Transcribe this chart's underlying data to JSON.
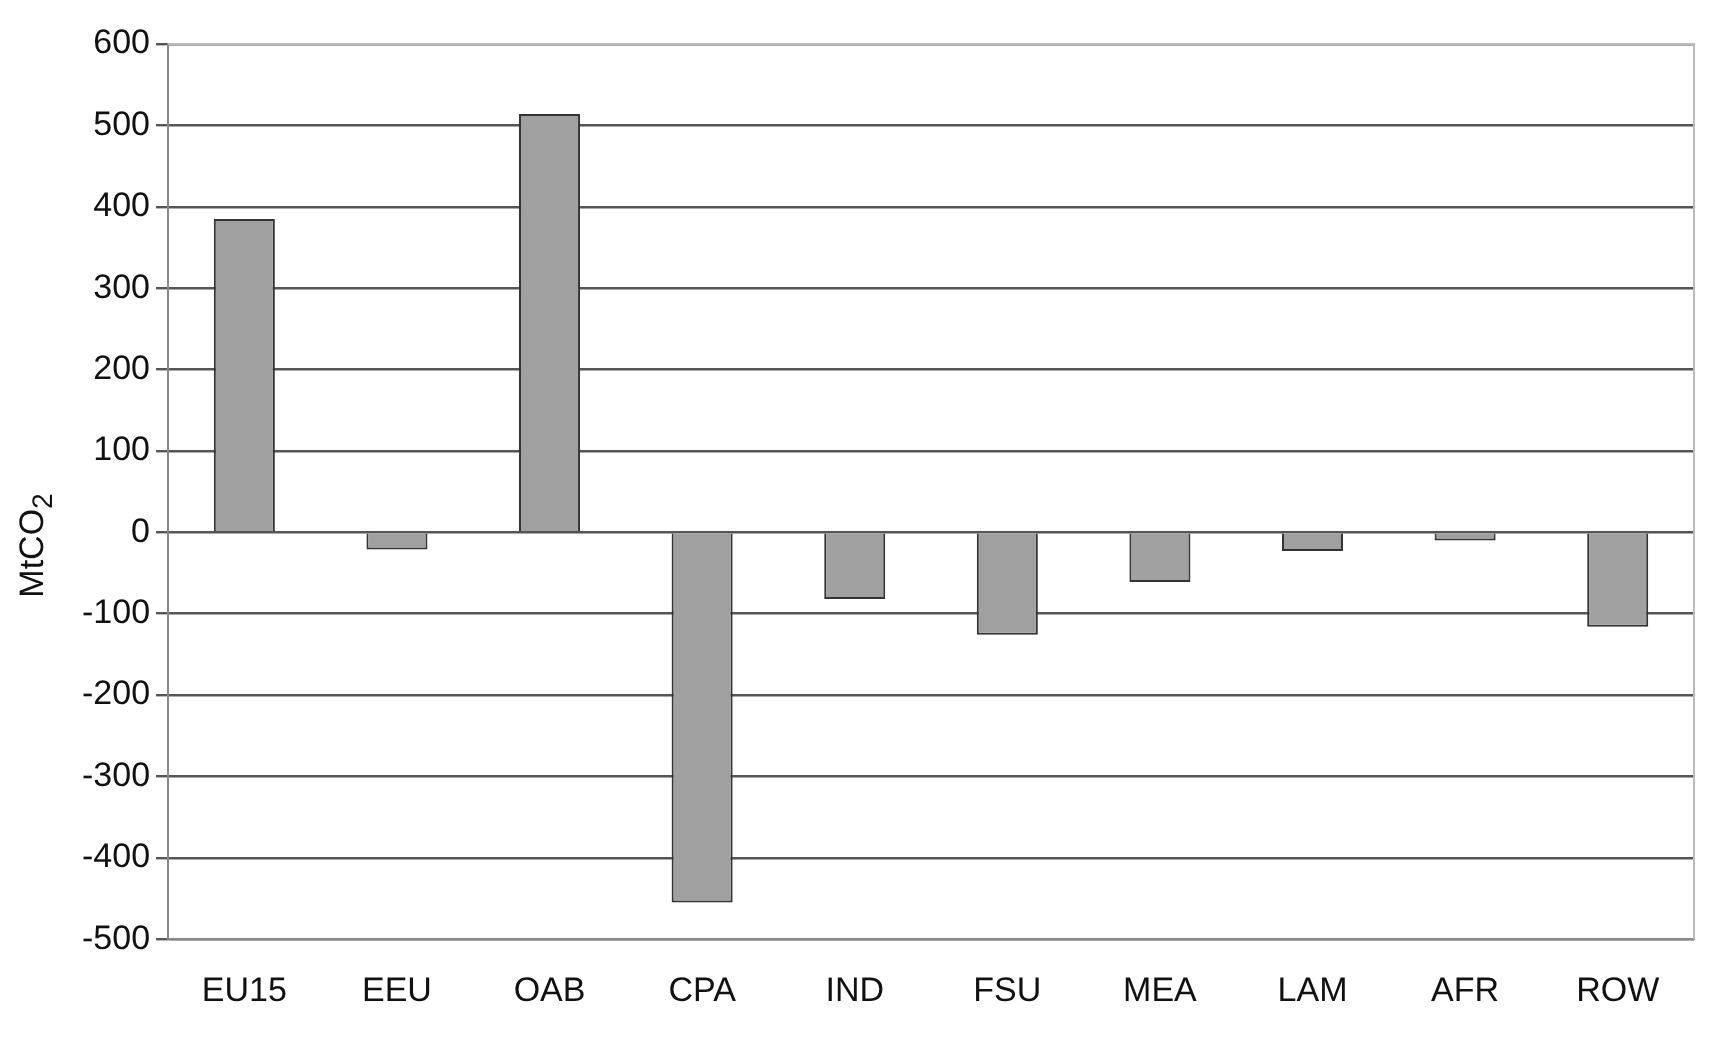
{
  "chart_data": {
    "type": "bar",
    "ylabel": "MtCO$_{2}$",
    "categories": [
      "EU15",
      "EEU",
      "OAB",
      "CPA",
      "IND",
      "FSU",
      "MEA",
      "LAM",
      "AFR",
      "ROW"
    ],
    "values": [
      385,
      -21,
      514,
      -455,
      -82,
      -126,
      -61,
      -23,
      -10,
      -116
    ],
    "color": "#a0a0a0",
    "ylim": [
      -500,
      600
    ],
    "yticks": [
      -500,
      -400,
      -300,
      -200,
      -100,
      0,
      100,
      200,
      300,
      400,
      500,
      600
    ],
    "grid": "y"
  }
}
